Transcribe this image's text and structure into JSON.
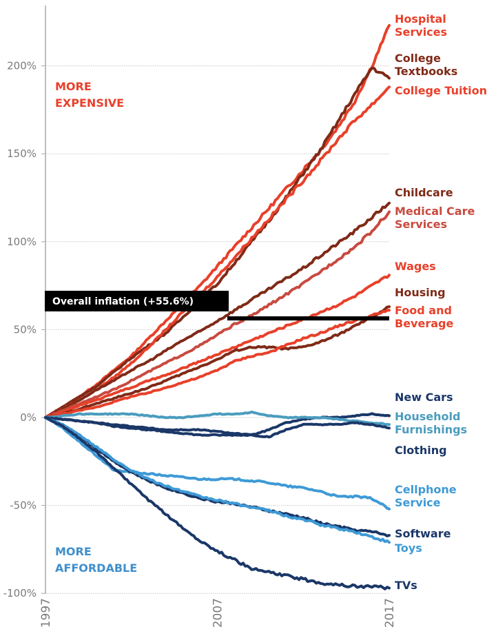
{
  "chart_data": {
    "type": "line",
    "title": "",
    "xlabel": "",
    "ylabel": "",
    "x": [
      1997,
      1998,
      1999,
      2000,
      2001,
      2002,
      2003,
      2004,
      2005,
      2006,
      2007,
      2008,
      2009,
      2010,
      2011,
      2012,
      2013,
      2014,
      2015,
      2016,
      2017
    ],
    "x_ticks": [
      "1997",
      "2007",
      "2017"
    ],
    "x_range": [
      1997,
      2017
    ],
    "y_ticks": [
      -100,
      -50,
      0,
      50,
      100,
      150,
      200
    ],
    "y_tick_labels": [
      "-100%",
      "-50%",
      "0%",
      "50%",
      "100%",
      "150%",
      "200%"
    ],
    "ylim": [
      -100,
      230
    ],
    "grid": "horizontal dotted",
    "legend": "direct labels at right end of lines",
    "annotations": {
      "more_expensive": [
        "MORE",
        "EXPENSIVE"
      ],
      "more_affordable": [
        "MORE",
        "AFFORDABLE"
      ],
      "overall_inflation": {
        "label": "Overall inflation (+55.6%)",
        "value": 55.6
      }
    },
    "colors": {
      "expensive": "#e8402a",
      "expensive_dark": "#7f2a17",
      "medical": "#c84a3f",
      "affordable_dark": "#1b3768",
      "affordable_light": "#3e9ad6",
      "furnishings": "#4a9cbe",
      "inflation": "#000000",
      "annot_expensive": "#e8402a",
      "annot_affordable": "#3e8fcc",
      "axis": "#9a9a9a",
      "grid": "#c8c8c8"
    },
    "series": [
      {
        "name": "Hospital Services",
        "label_lines": [
          "Hospital",
          "Services"
        ],
        "color": "#e8402a",
        "values": [
          0,
          6,
          12,
          19,
          27,
          35,
          45,
          55,
          65,
          75,
          86,
          97,
          108,
          119,
          130,
          141,
          152,
          165,
          180,
          200,
          223
        ]
      },
      {
        "name": "College Textbooks",
        "label_lines": [
          "College",
          "Textbooks"
        ],
        "color": "#7f2a17",
        "values": [
          0,
          6,
          12,
          18,
          26,
          34,
          41,
          48,
          57,
          67,
          76,
          88,
          100,
          112,
          125,
          139,
          152,
          168,
          184,
          199,
          193
        ]
      },
      {
        "name": "College Tuition",
        "label_lines": [
          "College Tuition"
        ],
        "color": "#e8402a",
        "values": [
          0,
          5,
          10,
          16,
          23,
          31,
          40,
          50,
          60,
          70,
          80,
          91,
          102,
          113,
          124,
          135,
          146,
          158,
          169,
          178,
          188
        ]
      },
      {
        "name": "Childcare",
        "label_lines": [
          "Childcare"
        ],
        "color": "#7f2a17",
        "values": [
          0,
          5,
          10,
          16,
          21,
          27,
          32,
          38,
          44,
          49,
          55,
          61,
          67,
          73,
          79,
          85,
          92,
          99,
          106,
          114,
          122
        ]
      },
      {
        "name": "Medical Care Services",
        "label_lines": [
          "Medical Care",
          "Services"
        ],
        "color": "#c84a3f",
        "values": [
          0,
          4,
          8,
          12,
          16,
          21,
          26,
          31,
          36,
          41,
          47,
          53,
          58,
          64,
          70,
          76,
          83,
          90,
          97,
          106,
          117
        ]
      },
      {
        "name": "Wages",
        "label_lines": [
          "Wages"
        ],
        "color": "#e8402a",
        "values": [
          0,
          3,
          7,
          10,
          14,
          17,
          21,
          24,
          28,
          32,
          36,
          40,
          44,
          48,
          52,
          56,
          60,
          64,
          69,
          75,
          81
        ]
      },
      {
        "name": "Housing",
        "label_lines": [
          "Housing"
        ],
        "color": "#7f2a17",
        "values": [
          0,
          2,
          5,
          8,
          11,
          14,
          17,
          21,
          25,
          29,
          33,
          38,
          40,
          40,
          39,
          40,
          43,
          47,
          52,
          57,
          63
        ]
      },
      {
        "name": "Food and Beverage",
        "label_lines": [
          "Food and",
          "Beverage"
        ],
        "color": "#e8402a",
        "values": [
          0,
          2,
          4,
          6,
          9,
          12,
          14,
          17,
          20,
          23,
          27,
          32,
          35,
          37,
          41,
          45,
          48,
          52,
          55,
          58,
          61
        ]
      },
      {
        "name": "New Cars",
        "label_lines": [
          "New Cars"
        ],
        "color": "#1b3768",
        "values": [
          0,
          -1,
          -2,
          -3,
          -4,
          -5,
          -6,
          -7,
          -7,
          -7,
          -8,
          -9,
          -10,
          -7,
          -3,
          -1,
          0,
          0,
          1,
          2,
          1
        ]
      },
      {
        "name": "Household Furnishings",
        "label_lines": [
          "Household",
          "Furnishings"
        ],
        "color": "#4a9cbe",
        "values": [
          0,
          1,
          2,
          2,
          2,
          2,
          1,
          0,
          0,
          1,
          2,
          2,
          3,
          1,
          0,
          0,
          0,
          -1,
          -2,
          -3,
          -4
        ]
      },
      {
        "name": "Clothing",
        "label_lines": [
          "Clothing"
        ],
        "color": "#1b3768",
        "values": [
          0,
          -1,
          -2,
          -3,
          -5,
          -6,
          -7,
          -8,
          -9,
          -10,
          -10,
          -10,
          -10,
          -11,
          -7,
          -4,
          -4,
          -4,
          -3,
          -4,
          -6
        ]
      },
      {
        "name": "Cellphone Service",
        "label_lines": [
          "Cellphone",
          "Service"
        ],
        "color": "#3e9ad6",
        "values": [
          0,
          -6,
          -14,
          -22,
          -30,
          -31,
          -32,
          -33,
          -34,
          -35,
          -35,
          -35,
          -36,
          -37,
          -39,
          -40,
          -42,
          -45,
          -45,
          -46,
          -52
        ]
      },
      {
        "name": "Software",
        "label_lines": [
          "Software"
        ],
        "color": "#1b3768",
        "values": [
          0,
          -4,
          -10,
          -18,
          -25,
          -31,
          -36,
          -40,
          -43,
          -46,
          -48,
          -49,
          -51,
          -53,
          -55,
          -57,
          -60,
          -62,
          -64,
          -65,
          -67
        ]
      },
      {
        "name": "Toys",
        "label_lines": [
          "Toys"
        ],
        "color": "#3e9ad6",
        "values": [
          0,
          -4,
          -10,
          -17,
          -24,
          -30,
          -35,
          -39,
          -42,
          -45,
          -47,
          -49,
          -51,
          -53,
          -56,
          -58,
          -61,
          -63,
          -65,
          -68,
          -71
        ]
      },
      {
        "name": "TVs",
        "label_lines": [
          "TVs"
        ],
        "color": "#1b3768",
        "values": [
          0,
          -5,
          -12,
          -20,
          -29,
          -38,
          -47,
          -55,
          -63,
          -70,
          -76,
          -81,
          -86,
          -88,
          -90,
          -92,
          -94,
          -95,
          -96,
          -96,
          -97
        ]
      }
    ]
  }
}
